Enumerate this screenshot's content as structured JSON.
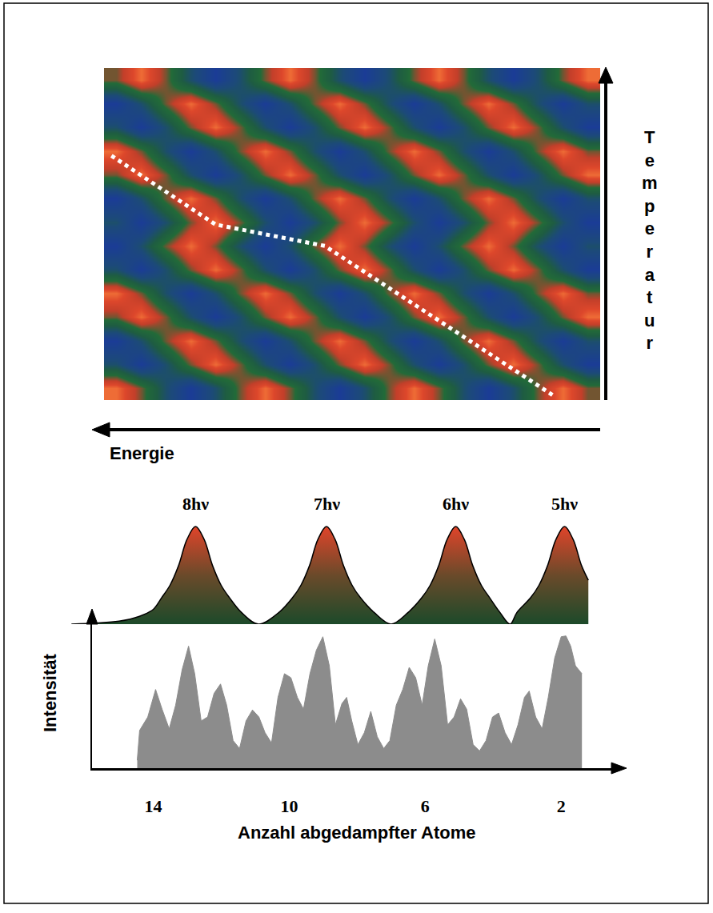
{
  "chart_data": [
    {
      "type": "heatmap",
      "x_label": "Energie",
      "y_label": "Temperatur",
      "tick_labels": false,
      "xlim": [
        -0.5,
        19.5
      ],
      "ylim": [
        -0.5,
        13.5
      ],
      "zlim": [
        0,
        1
      ],
      "z": [
        [
          1,
          0.7,
          0.3,
          0,
          0.3,
          0.7,
          1,
          0.7,
          0.3,
          0,
          0.3,
          0.7,
          1,
          0.7,
          0.3,
          0,
          0.3,
          0.7,
          1,
          0.7
        ],
        [
          0.3,
          0,
          0.3,
          0.7,
          1,
          0.7,
          0.3,
          0,
          0.3,
          0.7,
          1,
          0.7,
          0.3,
          0,
          0.3,
          0.7,
          1,
          0.7,
          0.3,
          0
        ],
        [
          0,
          0.3,
          0.7,
          1,
          0.7,
          0.3,
          0,
          0.3,
          0.7,
          1,
          0.7,
          0.3,
          0,
          0.3,
          0.7,
          1,
          0.7,
          0.3,
          0,
          0.3
        ],
        [
          0.7,
          1,
          0.7,
          0.3,
          0,
          0.3,
          0.7,
          1,
          0.7,
          0.3,
          0,
          0.3,
          0.7,
          1,
          0.7,
          0.3,
          0,
          0.3,
          0.7,
          1
        ],
        [
          1,
          0.7,
          0.3,
          0,
          0.3,
          0.7,
          1,
          0.7,
          0.3,
          0,
          0.3,
          0.7,
          1,
          0.7,
          0.3,
          0,
          0.3,
          0.7,
          1,
          0.7
        ],
        [
          0.3,
          0,
          0.3,
          0.7,
          1,
          0.7,
          0.3,
          0,
          0.3,
          0.7,
          1,
          0.7,
          0.3,
          0,
          0.3,
          0.7,
          1,
          0.7,
          0.3,
          0
        ],
        [
          0,
          0.3,
          0.7,
          1,
          0.7,
          0.3,
          0,
          0.3,
          0.7,
          1,
          0.7,
          0.3,
          0,
          0.3,
          0.7,
          1,
          0.7,
          0.3,
          0,
          0.3
        ],
        [
          0.3,
          0,
          0.3,
          0.7,
          1,
          0.7,
          0.3,
          0,
          0.3,
          0.7,
          1,
          0.7,
          0.3,
          0,
          0.3,
          0.7,
          1,
          0.7,
          0.3,
          0
        ],
        [
          0,
          0.3,
          0.7,
          1,
          0.7,
          0.3,
          0,
          0.3,
          0.7,
          1,
          0.7,
          0.3,
          0,
          0.3,
          0.7,
          1,
          0.7,
          0.3,
          0,
          0.3
        ],
        [
          0.7,
          1,
          0.7,
          0.3,
          0,
          0.3,
          0.7,
          1,
          0.7,
          0.3,
          0,
          0.3,
          0.7,
          1,
          0.7,
          0.3,
          0,
          0.3,
          0.7,
          1
        ],
        [
          1,
          0.7,
          0.3,
          0,
          0.3,
          0.7,
          1,
          0.7,
          0.3,
          0,
          0.3,
          0.7,
          1,
          0.7,
          0.3,
          0,
          0.3,
          0.7,
          1,
          0.7
        ],
        [
          0.3,
          0,
          0.3,
          0.7,
          1,
          0.7,
          0.3,
          0,
          0.3,
          0.7,
          1,
          0.7,
          0.3,
          0,
          0.3,
          0.7,
          1,
          0.7,
          0.3,
          0
        ],
        [
          0,
          0.3,
          0.7,
          1,
          0.7,
          0.3,
          0,
          0.3,
          0.7,
          1,
          0.7,
          0.3,
          0,
          0.3,
          0.7,
          1,
          0.7,
          0.3,
          0,
          0.3
        ],
        [
          0.7,
          1,
          0.7,
          0.3,
          0,
          0.3,
          0.7,
          1,
          0.7,
          0.3,
          0,
          0.3,
          0.7,
          1,
          0.7,
          0.3,
          0,
          0.3,
          0.7,
          1
        ]
      ],
      "line": {
        "x": [
          -0.2,
          4.0,
          8.4,
          17.6
        ],
        "y": [
          9.8,
          6.9,
          6.0,
          -0.3
        ],
        "color": "#ffffff",
        "line_style": "dotted"
      }
    },
    {
      "type": "area",
      "tick_labels": false,
      "xlim": [
        16.5,
        0.5
      ],
      "ylim": [
        0,
        1.05
      ],
      "color": "#e0442a",
      "x": [
        16.4,
        15.0,
        14.4,
        14.0,
        13.75,
        13.5,
        13.25,
        13.0,
        12.75,
        12.5,
        12.25,
        12.0,
        11.75,
        11.4,
        10.9,
        10.3,
        9.9,
        9.65,
        9.4,
        9.15,
        8.9,
        8.65,
        8.4,
        8.15,
        7.9,
        7.5,
        7.0,
        6.5,
        6.1,
        5.85,
        5.6,
        5.35,
        5.1,
        4.85,
        4.6,
        4.35,
        4.1,
        3.8,
        3.5,
        3.3,
        2.9,
        2.65,
        2.4,
        2.15,
        1.9,
        1.65,
        1.4,
        1.2
      ],
      "values": [
        0,
        0.03,
        0.08,
        0.15,
        0.27,
        0.4,
        0.6,
        0.87,
        1,
        0.87,
        0.6,
        0.4,
        0.27,
        0.12,
        0,
        0.12,
        0.27,
        0.4,
        0.6,
        0.87,
        1,
        0.87,
        0.6,
        0.4,
        0.27,
        0.12,
        0,
        0.12,
        0.27,
        0.4,
        0.6,
        0.87,
        1,
        0.87,
        0.6,
        0.4,
        0.27,
        0.12,
        0,
        0.12,
        0.27,
        0.4,
        0.6,
        0.87,
        1,
        0.87,
        0.6,
        0.45
      ],
      "peaks": [
        {
          "x": 12.75,
          "label": "8hν"
        },
        {
          "x": 8.9,
          "label": "7hν"
        },
        {
          "x": 5.1,
          "label": "6hν"
        },
        {
          "x": 1.9,
          "label": "5hν"
        }
      ]
    },
    {
      "type": "area",
      "tick_labels": "x",
      "x_label": "Anzahl abgedampfter Atome",
      "y_label": "Intensität",
      "xlim": [
        15.8,
        0.5
      ],
      "ylim": [
        0,
        11
      ],
      "xticks": [
        14,
        10,
        6,
        2
      ],
      "color": "#8c8c8c",
      "x": [
        14.47,
        14.4,
        14.16,
        13.93,
        13.74,
        13.53,
        13.34,
        13.15,
        12.96,
        12.78,
        12.59,
        12.4,
        12.21,
        12.02,
        11.84,
        11.65,
        11.46,
        11.27,
        11.08,
        10.89,
        10.71,
        10.52,
        10.33,
        10.14,
        9.95,
        9.76,
        9.58,
        9.39,
        9.2,
        9.01,
        8.82,
        8.64,
        8.45,
        8.31,
        8.16,
        7.98,
        7.79,
        7.6,
        7.41,
        7.22,
        7.04,
        6.85,
        6.66,
        6.47,
        6.28,
        6.09,
        5.91,
        5.72,
        5.53,
        5.34,
        5.15,
        4.96,
        4.78,
        4.59,
        4.4,
        4.21,
        4.02,
        3.84,
        3.65,
        3.46,
        3.27,
        3.08,
        2.94,
        2.75,
        2.56,
        2.38,
        2.19,
        2.0,
        1.86,
        1.72,
        1.58,
        1.39
      ],
      "values": [
        0.59,
        2.82,
        3.82,
        5.88,
        4.41,
        2.94,
        4.71,
        7.35,
        9.12,
        7.06,
        3.53,
        3.82,
        5.59,
        6.29,
        4.71,
        2.06,
        1.47,
        3.53,
        4.35,
        3.82,
        2.65,
        1.88,
        5.29,
        7.06,
        6.76,
        5.29,
        4.41,
        7.06,
        8.82,
        9.82,
        7.65,
        3.24,
        4.82,
        5.29,
        3.53,
        1.76,
        2.65,
        4.24,
        2.35,
        1.47,
        2.06,
        4.71,
        5.88,
        7.53,
        6.76,
        4.71,
        7.65,
        9.65,
        7.65,
        3.24,
        3.82,
        5.18,
        4.41,
        1.76,
        1.29,
        2.06,
        3.82,
        4.12,
        2.65,
        1.76,
        3.24,
        5.29,
        5.76,
        3.82,
        2.94,
        5.29,
        8.24,
        9.82,
        9.88,
        9.12,
        7.65,
        7.06
      ]
    }
  ]
}
